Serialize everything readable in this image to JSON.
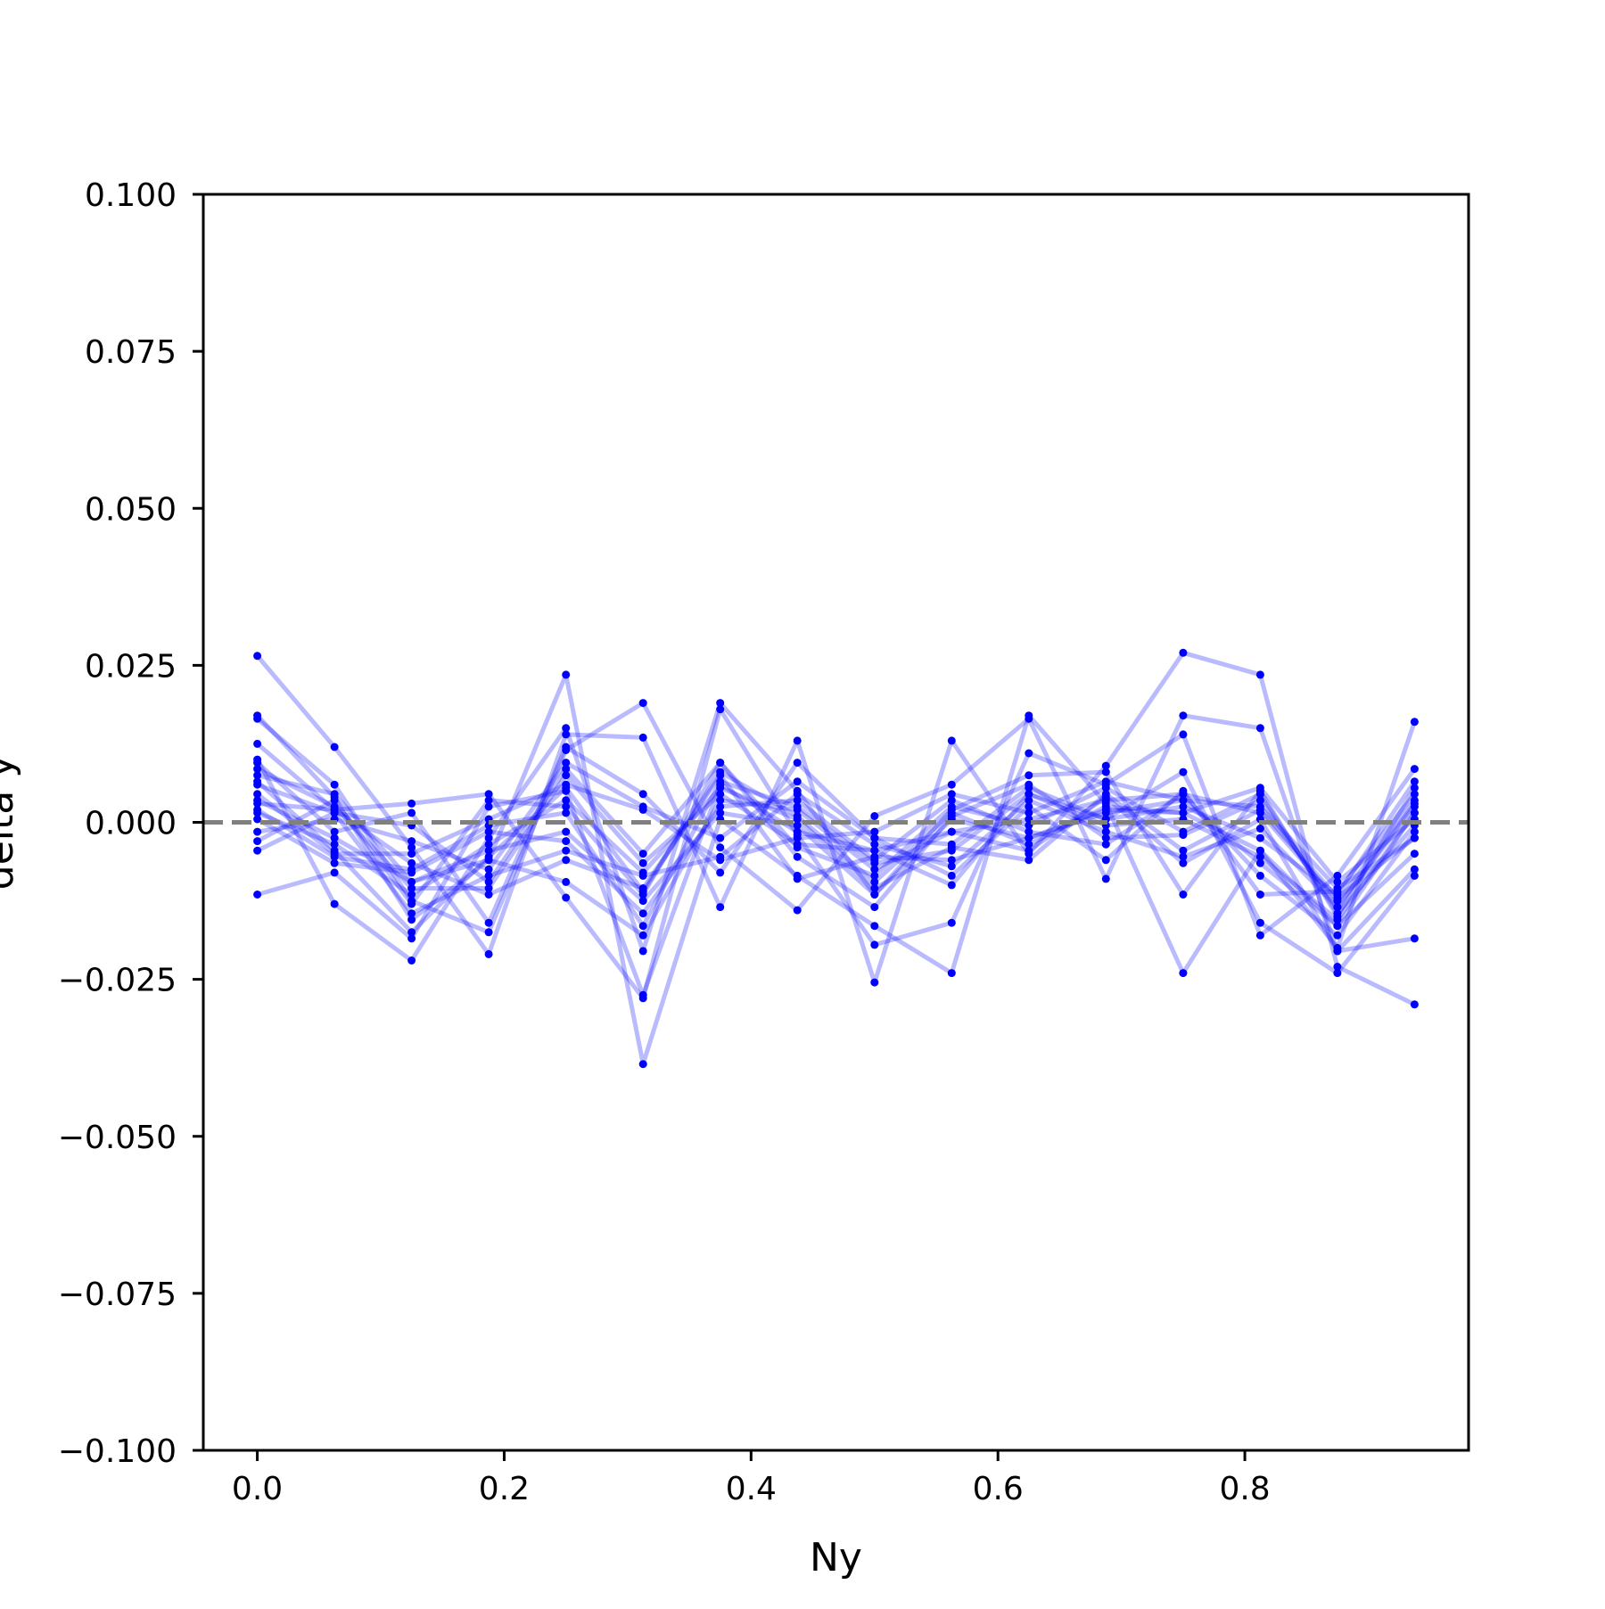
{
  "chart_data": {
    "type": "line",
    "title": "",
    "xlabel": "Ny",
    "ylabel": "delta y",
    "xlim": [
      -0.04375,
      0.98125
    ],
    "ylim": [
      -0.1,
      0.1
    ],
    "xticks": [
      0.0,
      0.2,
      0.4,
      0.6,
      0.8
    ],
    "xtick_labels": [
      "0.0",
      "0.2",
      "0.4",
      "0.6",
      "0.8"
    ],
    "yticks": [
      -0.1,
      -0.075,
      -0.05,
      -0.025,
      0.0,
      0.025,
      0.05,
      0.075,
      0.1
    ],
    "ytick_labels": [
      "−0.100",
      "−0.075",
      "−0.050",
      "−0.025",
      "0.000",
      "0.025",
      "0.050",
      "0.075",
      "0.100"
    ],
    "grid": false,
    "reference_line": {
      "y": 0.0,
      "style": "dashed",
      "color": "#808080"
    },
    "series_color": "#0000ff",
    "x": [
      0.0,
      0.0625,
      0.125,
      0.1875,
      0.25,
      0.3125,
      0.375,
      0.4375,
      0.5,
      0.5625,
      0.625,
      0.6875,
      0.75,
      0.8125,
      0.875,
      0.9375
    ],
    "series": [
      {
        "values": [
          0.0265,
          0.012,
          -0.004,
          -0.021,
          0.014,
          0.0135,
          -0.0135,
          0.013,
          -0.0255,
          0.013,
          -0.005,
          0.009,
          0.027,
          0.0235,
          -0.023,
          -0.029
        ]
      },
      {
        "values": [
          0.017,
          0.004,
          -0.0155,
          -0.006,
          0.0235,
          -0.0385,
          0.0005,
          -0.0085,
          -0.0165,
          -0.024,
          0.017,
          0.003,
          -0.024,
          -0.0045,
          -0.02,
          0.016
        ]
      },
      {
        "values": [
          0.0165,
          0.006,
          -0.0125,
          -0.0175,
          0.0115,
          0.019,
          -0.004,
          -0.014,
          0.001,
          0.006,
          0.0165,
          -0.009,
          0.017,
          0.015,
          -0.0205,
          -0.0185
        ]
      },
      {
        "values": [
          0.0125,
          0.002,
          0.003,
          0.0045,
          -0.012,
          -0.028,
          0.018,
          -0.002,
          -0.0195,
          -0.016,
          0.011,
          0.006,
          0.014,
          -0.018,
          -0.0085,
          0.0085
        ]
      },
      {
        "values": [
          0.01,
          -0.013,
          -0.022,
          -0.0025,
          0.015,
          -0.0205,
          0.019,
          0.005,
          -0.0115,
          0.002,
          0.0075,
          0.008,
          -0.0115,
          0.005,
          -0.015,
          0.0055
        ]
      },
      {
        "values": [
          -0.0115,
          -0.008,
          -0.0185,
          0.0025,
          0.005,
          -0.0275,
          0.006,
          -0.0015,
          -0.0045,
          -0.01,
          0.0045,
          0.0005,
          0.008,
          -0.016,
          -0.024,
          -0.0085
        ]
      },
      {
        "values": [
          0.0095,
          -0.0015,
          0.0015,
          -0.016,
          0.012,
          0.0045,
          -0.008,
          0.0095,
          -0.0025,
          -0.0085,
          0.0025,
          -0.006,
          0.005,
          -0.0115,
          -0.011,
          0.0045
        ]
      },
      {
        "values": [
          0.0075,
          0.0045,
          -0.0095,
          -0.006,
          -0.0095,
          -0.018,
          0.0035,
          0.002,
          -0.0075,
          -0.0015,
          -0.0045,
          0.004,
          -0.0065,
          0.0005,
          -0.0205,
          -0.0075
        ]
      },
      {
        "values": [
          0.006,
          0.0015,
          -0.0005,
          -0.0095,
          0.0085,
          -0.005,
          0.0095,
          -0.0055,
          -0.0135,
          0.001,
          0.006,
          -0.0025,
          -0.002,
          0.0035,
          -0.0135,
          0.003
        ]
      },
      {
        "values": [
          0.0045,
          -0.005,
          -0.005,
          0.0005,
          0.006,
          0.002,
          -0.006,
          -0.0025,
          -0.0015,
          0.0045,
          0.0015,
          0.0065,
          0.0035,
          -0.0065,
          -0.0165,
          0.0015
        ]
      },
      {
        "values": [
          0.003,
          0.002,
          -0.0065,
          -0.0115,
          -0.006,
          -0.0105,
          0.0075,
          -0.009,
          -0.0055,
          -0.006,
          -0.0025,
          0.002,
          0.0015,
          0.0055,
          -0.0095,
          0.0005
        ]
      },
      {
        "values": [
          0.0015,
          -0.0035,
          -0.0115,
          -0.0035,
          0.0035,
          -0.008,
          0.0055,
          0.0005,
          -0.0105,
          -0.004,
          -0.006,
          0.0045,
          -0.0045,
          0.002,
          -0.012,
          -0.0025
        ]
      },
      {
        "values": [
          0.0005,
          -0.0065,
          -0.008,
          -0.0015,
          -0.003,
          -0.0145,
          0.0025,
          0.0035,
          -0.006,
          0.0035,
          -0.0015,
          -0.0035,
          0.0045,
          -0.0085,
          -0.018,
          -0.0015
        ]
      },
      {
        "values": [
          -0.0015,
          0.0005,
          -0.003,
          -0.0075,
          0.0095,
          0.0025,
          -0.0025,
          0.0065,
          -0.0025,
          -0.0035,
          0.0055,
          0.0005,
          0.0025,
          -0.0025,
          -0.0115,
          0.0065
        ]
      },
      {
        "values": [
          -0.003,
          0.0035,
          -0.013,
          0.0035,
          0.0025,
          -0.0115,
          0.0095,
          -0.004,
          -0.0085,
          0.0025,
          -0.0005,
          0.0055,
          -0.0015,
          0.0045,
          -0.0145,
          -0.0005
        ]
      },
      {
        "values": [
          -0.0045,
          0.0015,
          -0.0145,
          -0.0085,
          -0.0045,
          -0.0085,
          -0.0055,
          0.0045,
          -0.0035,
          -0.007,
          0.0035,
          -0.0015,
          -0.0055,
          -0.001,
          -0.0135,
          0.0025
        ]
      },
      {
        "values": [
          0.0065,
          -0.0045,
          -0.0175,
          -0.0055,
          0.0055,
          -0.011,
          0.008,
          0.001,
          -0.0095,
          0.0015,
          -0.0035,
          0.0025,
          0.0015,
          -0.0045,
          -0.0165,
          -0.005
        ]
      },
      {
        "values": [
          0.0085,
          0.0025,
          -0.0105,
          -0.0105,
          0.0075,
          -0.0065,
          0.0045,
          -0.0035,
          -0.0045,
          -0.0015,
          0.0005,
          0.0035,
          0.0045,
          0.0015,
          -0.0125,
          0.0035
        ]
      },
      {
        "values": [
          0.002,
          -0.0055,
          -0.0075,
          -0.0005,
          0.0015,
          -0.0165,
          0.0065,
          0.0025,
          -0.0065,
          -0.0045,
          0.0045,
          -0.0005,
          0.0005,
          -0.0055,
          -0.0155,
          0.0015
        ]
      },
      {
        "values": [
          0.0035,
          -0.0025,
          -0.0095,
          -0.0045,
          -0.0015,
          -0.0125,
          0.0015,
          -0.0005,
          -0.0115,
          0.0005,
          -0.0025,
          0.0015,
          0.0035,
          0.0025,
          -0.0105,
          -0.0025
        ]
      }
    ]
  }
}
